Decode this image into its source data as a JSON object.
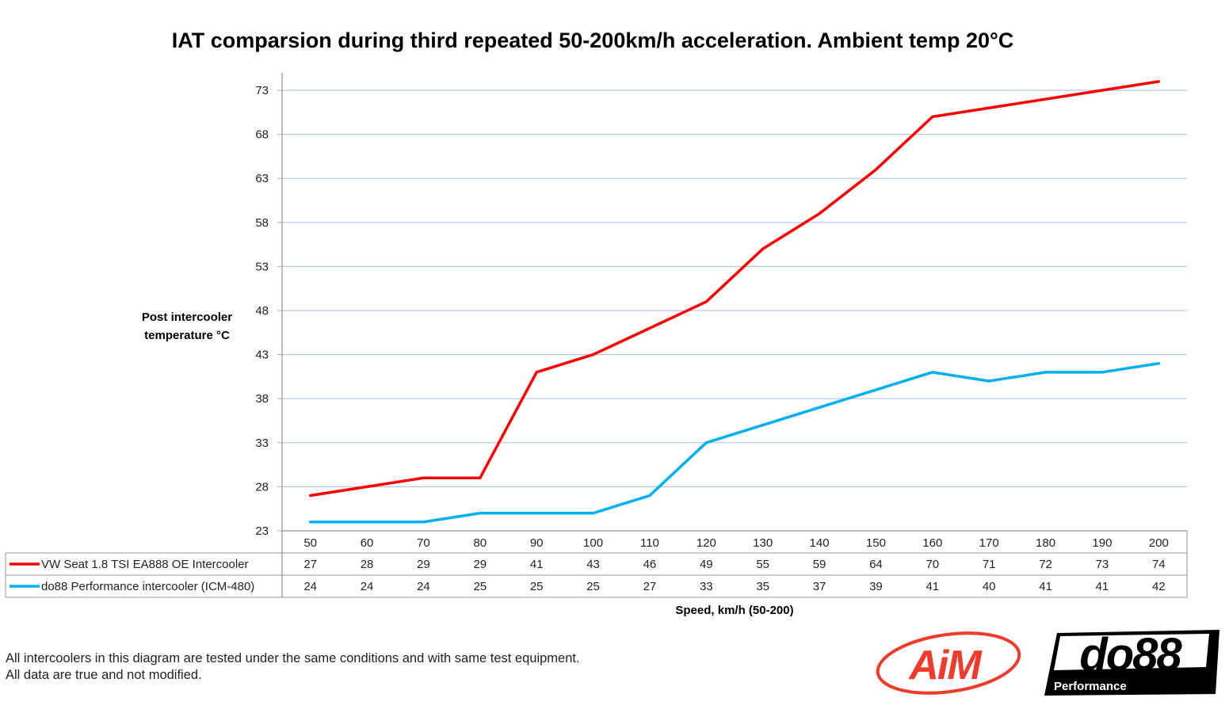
{
  "chart_data": {
    "type": "line",
    "title": "IAT comparsion during third repeated 50-200km/h acceleration. Ambient temp 20°C",
    "ylabel": [
      "Post intercooler",
      "temperature °C"
    ],
    "xlabel": "Speed, km/h (50-200)",
    "ylim": [
      23,
      75
    ],
    "yticks": [
      23,
      28,
      33,
      38,
      43,
      48,
      53,
      58,
      63,
      68,
      73
    ],
    "grid": true,
    "legend": "data-table-below",
    "categories": [
      "50",
      "60",
      "70",
      "80",
      "90",
      "100",
      "110",
      "120",
      "130",
      "140",
      "150",
      "160",
      "170",
      "180",
      "190",
      "200"
    ],
    "series": [
      {
        "name": "VW Seat 1.8 TSI EA888 OE Intercooler",
        "color": "#ff0000",
        "values": [
          27,
          28,
          29,
          29,
          41,
          43,
          46,
          49,
          55,
          59,
          64,
          70,
          71,
          72,
          73,
          74
        ]
      },
      {
        "name": "do88 Performance intercooler (ICM-480)",
        "color": "#00b0f0",
        "values": [
          24,
          24,
          24,
          25,
          25,
          25,
          27,
          33,
          35,
          37,
          39,
          41,
          40,
          41,
          41,
          42
        ]
      }
    ],
    "colors": {
      "grid": "#b4c7e7",
      "axis": "#a6a6a6"
    }
  },
  "footer": {
    "line1": "All intercoolers in this diagram are tested under the same conditions and with same test equipment.",
    "line2": "All data are true and not modified."
  },
  "logos": {
    "aim": "AiM",
    "do88": "do88",
    "do88_sub": "Performance"
  }
}
